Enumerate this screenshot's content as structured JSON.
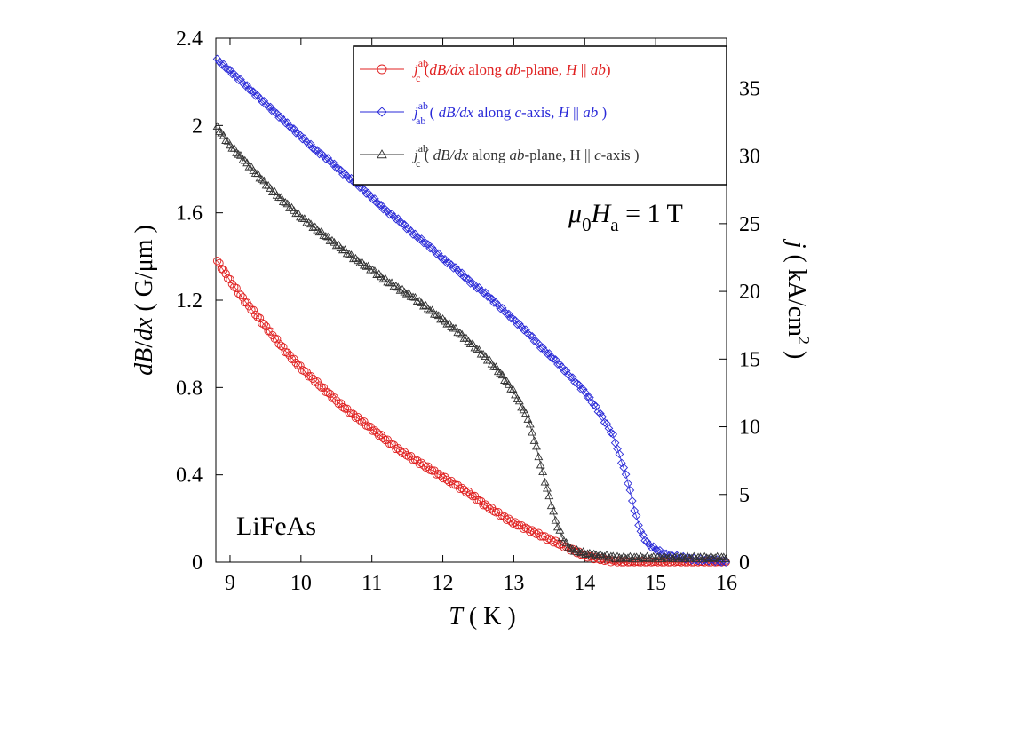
{
  "chart_data": {
    "type": "scatter",
    "sample_label": "LiFeAs",
    "field_annotation": {
      "symbol": "μ",
      "sub1": "0",
      "var": "H",
      "sub2": "a",
      "rest": " = 1 T"
    },
    "xlabel": {
      "var": "T",
      "unit": " ( K )"
    },
    "ylabel_left": {
      "var1": "dB",
      "slash": "/",
      "var2": "dx",
      "unit": " ( G/μm )"
    },
    "ylabel_right": {
      "var": "j",
      "unit": " ( kA/cm",
      "sup": "2",
      "close": " )"
    },
    "xlim": [
      8.8,
      16
    ],
    "ylim_left": [
      0,
      2.4
    ],
    "ylim_right": [
      0,
      38.7
    ],
    "x_ticks": [
      "9",
      "10",
      "11",
      "12",
      "13",
      "14",
      "15",
      "16"
    ],
    "y_left_ticks": [
      "0",
      "0.4",
      "0.8",
      "1.2",
      "1.6",
      "2",
      "2.4"
    ],
    "y_right_ticks": [
      "0",
      "5",
      "10",
      "15",
      "20",
      "25",
      "30",
      "35"
    ],
    "legend_position": "top-right",
    "series": [
      {
        "name": "j_c^ab (dB/dx along ab-plane, H || ab)",
        "legend": {
          "main": "j",
          "sub": "c",
          "sup": "ab",
          "p1": " (",
          "i1": "dB/dx",
          "p2": " along ",
          "i2": "ab",
          "p3": "-plane, ",
          "i3": "H",
          "p4": " || ",
          "i4": "ab",
          "p5": ")"
        },
        "color": "#e02020",
        "marker": "circle",
        "points": [
          [
            8.82,
            1.38
          ],
          [
            9.0,
            1.29
          ],
          [
            9.2,
            1.2
          ],
          [
            9.4,
            1.12
          ],
          [
            9.6,
            1.04
          ],
          [
            9.8,
            0.96
          ],
          [
            10.0,
            0.89
          ],
          [
            10.2,
            0.83
          ],
          [
            10.4,
            0.77
          ],
          [
            10.6,
            0.71
          ],
          [
            10.8,
            0.66
          ],
          [
            11.0,
            0.61
          ],
          [
            11.2,
            0.56
          ],
          [
            11.4,
            0.51
          ],
          [
            11.6,
            0.47
          ],
          [
            11.8,
            0.43
          ],
          [
            12.0,
            0.39
          ],
          [
            12.2,
            0.35
          ],
          [
            12.4,
            0.31
          ],
          [
            12.6,
            0.26
          ],
          [
            12.8,
            0.22
          ],
          [
            13.0,
            0.18
          ],
          [
            13.2,
            0.15
          ],
          [
            13.4,
            0.12
          ],
          [
            13.6,
            0.09
          ],
          [
            13.8,
            0.06
          ],
          [
            14.0,
            0.03
          ],
          [
            14.2,
            0.015
          ],
          [
            14.4,
            0.005
          ],
          [
            14.6,
            0.0
          ],
          [
            14.8,
            0.0
          ],
          [
            15.0,
            0.0
          ],
          [
            15.5,
            0.0
          ],
          [
            16.0,
            0.0
          ]
        ]
      },
      {
        "name": "j_ab^ab ( dB/dx along c-axis, H || ab )",
        "legend": {
          "main": "j",
          "sub": "ab",
          "sup": "ab",
          "p1": " ( ",
          "i1": "dB/dx",
          "p2": " along ",
          "i2": "c",
          "p3": "-axis, ",
          "i3": "H",
          "p4": " || ",
          "i4": "ab",
          "p5": " )"
        },
        "color": "#2a2ad8",
        "marker": "diamond",
        "points": [
          [
            8.82,
            2.3
          ],
          [
            9.0,
            2.25
          ],
          [
            9.2,
            2.19
          ],
          [
            9.4,
            2.13
          ],
          [
            9.6,
            2.07
          ],
          [
            9.8,
            2.01
          ],
          [
            10.0,
            1.95
          ],
          [
            10.2,
            1.89
          ],
          [
            10.4,
            1.84
          ],
          [
            10.6,
            1.78
          ],
          [
            10.8,
            1.73
          ],
          [
            11.0,
            1.67
          ],
          [
            11.2,
            1.61
          ],
          [
            11.4,
            1.56
          ],
          [
            11.6,
            1.5
          ],
          [
            11.8,
            1.45
          ],
          [
            12.0,
            1.39
          ],
          [
            12.2,
            1.34
          ],
          [
            12.4,
            1.28
          ],
          [
            12.6,
            1.23
          ],
          [
            12.8,
            1.17
          ],
          [
            13.0,
            1.11
          ],
          [
            13.2,
            1.05
          ],
          [
            13.4,
            0.98
          ],
          [
            13.6,
            0.92
          ],
          [
            13.8,
            0.85
          ],
          [
            14.0,
            0.78
          ],
          [
            14.2,
            0.69
          ],
          [
            14.4,
            0.58
          ],
          [
            14.5,
            0.48
          ],
          [
            14.6,
            0.38
          ],
          [
            14.7,
            0.24
          ],
          [
            14.8,
            0.13
          ],
          [
            14.9,
            0.08
          ],
          [
            15.0,
            0.06
          ],
          [
            15.1,
            0.04
          ],
          [
            15.2,
            0.03
          ],
          [
            15.4,
            0.02
          ],
          [
            15.6,
            0.01
          ],
          [
            15.8,
            0.01
          ],
          [
            16.0,
            0.0
          ]
        ]
      },
      {
        "name": "j_c^ab ( dB/dx along ab-plane, H || c-axis )",
        "legend": {
          "main": "j",
          "sub": "c",
          "sup": "ab",
          "p1": " ( ",
          "i1": "dB/dx",
          "p2": " along ",
          "i2": "ab",
          "p3": "-plane, H || ",
          "i3": "c",
          "p4": "-axis )",
          "i4": "",
          "p5": ""
        },
        "color": "#333333",
        "marker": "triangle",
        "points": [
          [
            8.82,
            1.99
          ],
          [
            9.0,
            1.91
          ],
          [
            9.2,
            1.84
          ],
          [
            9.4,
            1.77
          ],
          [
            9.6,
            1.7
          ],
          [
            9.8,
            1.64
          ],
          [
            10.0,
            1.58
          ],
          [
            10.2,
            1.53
          ],
          [
            10.4,
            1.48
          ],
          [
            10.6,
            1.43
          ],
          [
            10.8,
            1.38
          ],
          [
            11.0,
            1.34
          ],
          [
            11.2,
            1.29
          ],
          [
            11.4,
            1.25
          ],
          [
            11.6,
            1.21
          ],
          [
            11.8,
            1.16
          ],
          [
            12.0,
            1.11
          ],
          [
            12.2,
            1.06
          ],
          [
            12.4,
            1.0
          ],
          [
            12.6,
            0.94
          ],
          [
            12.8,
            0.87
          ],
          [
            13.0,
            0.78
          ],
          [
            13.2,
            0.66
          ],
          [
            13.3,
            0.55
          ],
          [
            13.4,
            0.42
          ],
          [
            13.5,
            0.3
          ],
          [
            13.6,
            0.18
          ],
          [
            13.7,
            0.1
          ],
          [
            13.8,
            0.06
          ],
          [
            14.0,
            0.04
          ],
          [
            14.2,
            0.03
          ],
          [
            14.5,
            0.02
          ],
          [
            15.0,
            0.02
          ],
          [
            15.5,
            0.02
          ],
          [
            16.0,
            0.02
          ]
        ]
      }
    ]
  }
}
